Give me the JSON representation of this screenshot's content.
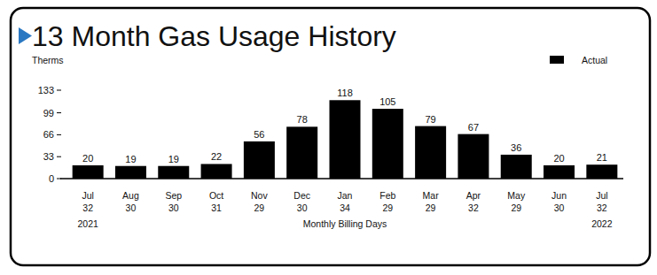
{
  "chart_data": {
    "type": "bar",
    "title": "13 Month Gas Usage History",
    "y_label": "Therms",
    "x_label": "Monthly Billing Days",
    "categories": [
      "Jul",
      "Aug",
      "Sep",
      "Oct",
      "Nov",
      "Dec",
      "Jan",
      "Feb",
      "Mar",
      "Apr",
      "May",
      "Jun",
      "Jul"
    ],
    "billing_days": [
      32,
      30,
      30,
      31,
      29,
      30,
      34,
      29,
      29,
      32,
      29,
      30,
      32
    ],
    "annotations": [
      "2021",
      "2022"
    ],
    "series": [
      {
        "name": "Actual",
        "color": "#000000",
        "values": [
          20,
          19,
          19,
          22,
          56,
          78,
          118,
          105,
          79,
          67,
          36,
          20,
          21
        ]
      }
    ],
    "ylim": [
      0,
      133
    ],
    "yticks": [
      0,
      33,
      66,
      99,
      133
    ],
    "grid": false,
    "legend": "top-right",
    "data_labels": true
  }
}
